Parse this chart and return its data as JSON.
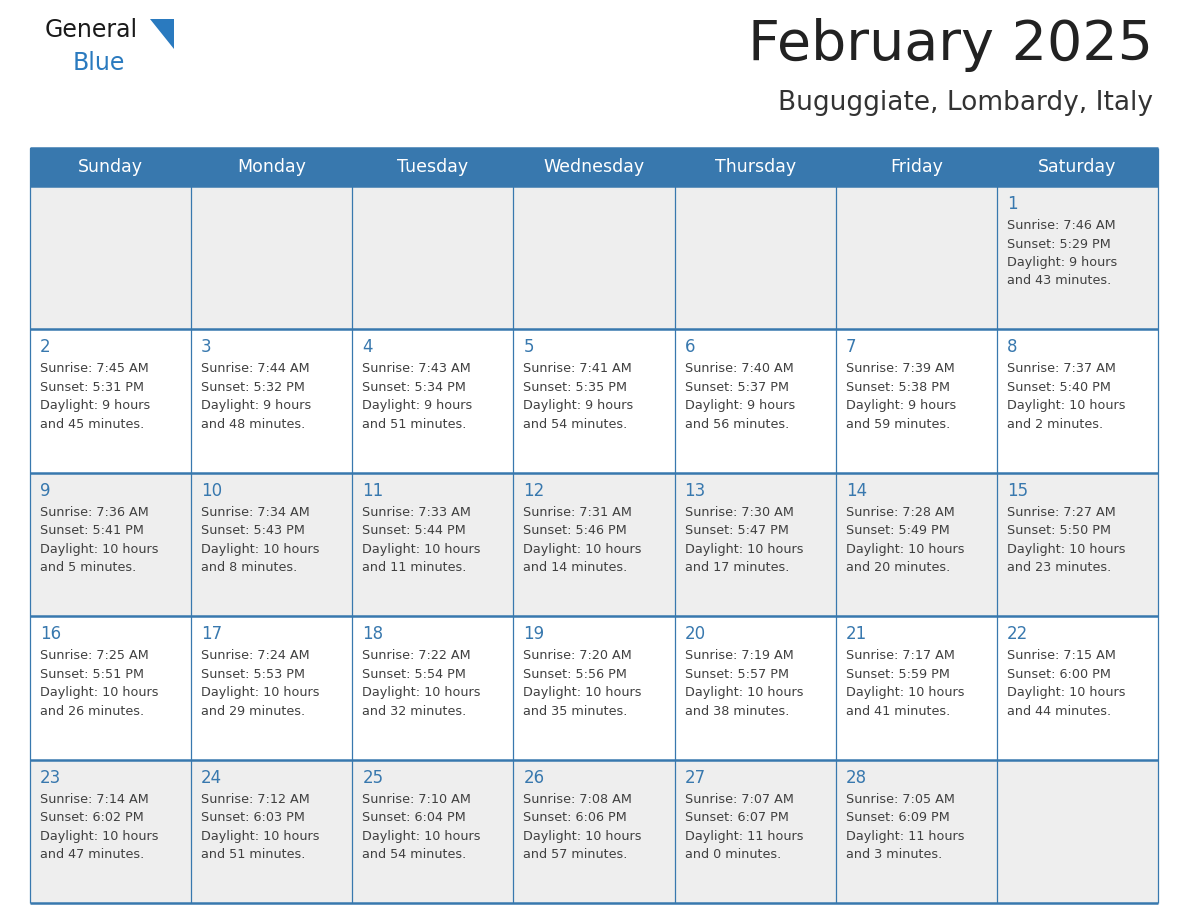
{
  "title": "February 2025",
  "subtitle": "Buguggiate, Lombardy, Italy",
  "days_of_week": [
    "Sunday",
    "Monday",
    "Tuesday",
    "Wednesday",
    "Thursday",
    "Friday",
    "Saturday"
  ],
  "header_bg": "#3878ae",
  "header_text": "#ffffff",
  "row1_bg": "#eeeeee",
  "row2_bg": "#ffffff",
  "border_color": "#3878ae",
  "day_num_color": "#3878ae",
  "text_color": "#404040",
  "calendar_data": [
    [
      null,
      null,
      null,
      null,
      null,
      null,
      {
        "day": 1,
        "sunrise": "7:46 AM",
        "sunset": "5:29 PM",
        "daylight": "9 hours and 43 minutes."
      }
    ],
    [
      {
        "day": 2,
        "sunrise": "7:45 AM",
        "sunset": "5:31 PM",
        "daylight": "9 hours and 45 minutes."
      },
      {
        "day": 3,
        "sunrise": "7:44 AM",
        "sunset": "5:32 PM",
        "daylight": "9 hours and 48 minutes."
      },
      {
        "day": 4,
        "sunrise": "7:43 AM",
        "sunset": "5:34 PM",
        "daylight": "9 hours and 51 minutes."
      },
      {
        "day": 5,
        "sunrise": "7:41 AM",
        "sunset": "5:35 PM",
        "daylight": "9 hours and 54 minutes."
      },
      {
        "day": 6,
        "sunrise": "7:40 AM",
        "sunset": "5:37 PM",
        "daylight": "9 hours and 56 minutes."
      },
      {
        "day": 7,
        "sunrise": "7:39 AM",
        "sunset": "5:38 PM",
        "daylight": "9 hours and 59 minutes."
      },
      {
        "day": 8,
        "sunrise": "7:37 AM",
        "sunset": "5:40 PM",
        "daylight": "10 hours and 2 minutes."
      }
    ],
    [
      {
        "day": 9,
        "sunrise": "7:36 AM",
        "sunset": "5:41 PM",
        "daylight": "10 hours and 5 minutes."
      },
      {
        "day": 10,
        "sunrise": "7:34 AM",
        "sunset": "5:43 PM",
        "daylight": "10 hours and 8 minutes."
      },
      {
        "day": 11,
        "sunrise": "7:33 AM",
        "sunset": "5:44 PM",
        "daylight": "10 hours and 11 minutes."
      },
      {
        "day": 12,
        "sunrise": "7:31 AM",
        "sunset": "5:46 PM",
        "daylight": "10 hours and 14 minutes."
      },
      {
        "day": 13,
        "sunrise": "7:30 AM",
        "sunset": "5:47 PM",
        "daylight": "10 hours and 17 minutes."
      },
      {
        "day": 14,
        "sunrise": "7:28 AM",
        "sunset": "5:49 PM",
        "daylight": "10 hours and 20 minutes."
      },
      {
        "day": 15,
        "sunrise": "7:27 AM",
        "sunset": "5:50 PM",
        "daylight": "10 hours and 23 minutes."
      }
    ],
    [
      {
        "day": 16,
        "sunrise": "7:25 AM",
        "sunset": "5:51 PM",
        "daylight": "10 hours and 26 minutes."
      },
      {
        "day": 17,
        "sunrise": "7:24 AM",
        "sunset": "5:53 PM",
        "daylight": "10 hours and 29 minutes."
      },
      {
        "day": 18,
        "sunrise": "7:22 AM",
        "sunset": "5:54 PM",
        "daylight": "10 hours and 32 minutes."
      },
      {
        "day": 19,
        "sunrise": "7:20 AM",
        "sunset": "5:56 PM",
        "daylight": "10 hours and 35 minutes."
      },
      {
        "day": 20,
        "sunrise": "7:19 AM",
        "sunset": "5:57 PM",
        "daylight": "10 hours and 38 minutes."
      },
      {
        "day": 21,
        "sunrise": "7:17 AM",
        "sunset": "5:59 PM",
        "daylight": "10 hours and 41 minutes."
      },
      {
        "day": 22,
        "sunrise": "7:15 AM",
        "sunset": "6:00 PM",
        "daylight": "10 hours and 44 minutes."
      }
    ],
    [
      {
        "day": 23,
        "sunrise": "7:14 AM",
        "sunset": "6:02 PM",
        "daylight": "10 hours and 47 minutes."
      },
      {
        "day": 24,
        "sunrise": "7:12 AM",
        "sunset": "6:03 PM",
        "daylight": "10 hours and 51 minutes."
      },
      {
        "day": 25,
        "sunrise": "7:10 AM",
        "sunset": "6:04 PM",
        "daylight": "10 hours and 54 minutes."
      },
      {
        "day": 26,
        "sunrise": "7:08 AM",
        "sunset": "6:06 PM",
        "daylight": "10 hours and 57 minutes."
      },
      {
        "day": 27,
        "sunrise": "7:07 AM",
        "sunset": "6:07 PM",
        "daylight": "11 hours and 0 minutes."
      },
      {
        "day": 28,
        "sunrise": "7:05 AM",
        "sunset": "6:09 PM",
        "daylight": "11 hours and 3 minutes."
      },
      null
    ]
  ]
}
